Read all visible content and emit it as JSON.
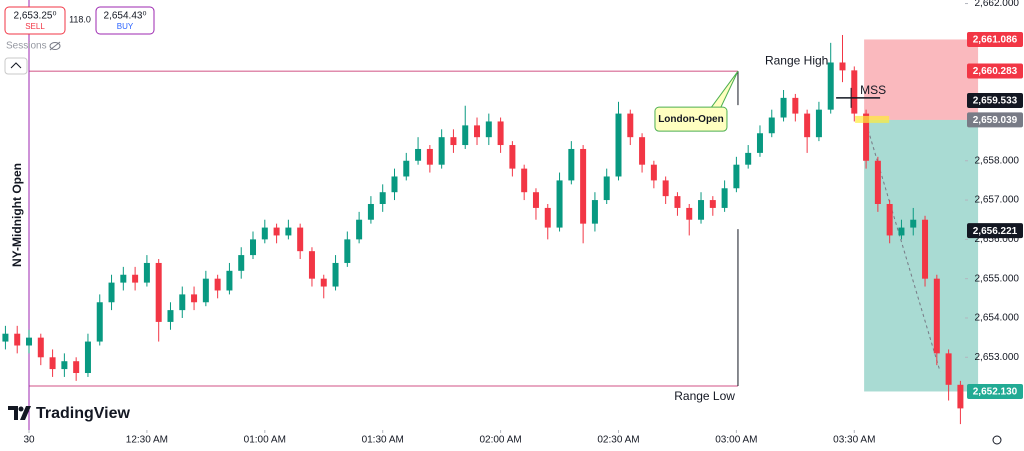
{
  "chart_data": {
    "type": "candlestick",
    "x": [
      -6,
      -3,
      0,
      3,
      6,
      9,
      12,
      15,
      18,
      21,
      24,
      27,
      30,
      33,
      36,
      39,
      42,
      45,
      48,
      51,
      54,
      57,
      60,
      63,
      66,
      69,
      72,
      75,
      78,
      81,
      84,
      87,
      90,
      93,
      96,
      99,
      102,
      105,
      108,
      111,
      114,
      117,
      120,
      123,
      126,
      129,
      132,
      135,
      138,
      141,
      144,
      147,
      150,
      153,
      156,
      159,
      162,
      165,
      168,
      171,
      174,
      177,
      180,
      183,
      186,
      189,
      192,
      195,
      198,
      201,
      204,
      207,
      210,
      213,
      216,
      219,
      222,
      225,
      228,
      231,
      234,
      237
    ],
    "open": [
      2653.4,
      2653.6,
      2653.3,
      2653.5,
      2653.0,
      2652.7,
      2652.9,
      2652.6,
      2653.4,
      2654.4,
      2654.9,
      2655.1,
      2654.9,
      2655.4,
      2653.9,
      2654.2,
      2654.6,
      2654.4,
      2655.0,
      2654.7,
      2655.2,
      2655.6,
      2656.0,
      2656.3,
      2656.1,
      2656.3,
      2655.7,
      2655.0,
      2654.8,
      2655.4,
      2656.0,
      2656.5,
      2656.9,
      2657.2,
      2657.6,
      2658.0,
      2658.3,
      2657.9,
      2658.6,
      2658.4,
      2658.9,
      2658.6,
      2659.0,
      2658.4,
      2657.8,
      2657.2,
      2656.8,
      2656.3,
      2657.5,
      2658.3,
      2656.4,
      2657.0,
      2657.6,
      2659.2,
      2658.6,
      2657.9,
      2657.5,
      2657.1,
      2656.8,
      2656.5,
      2657.0,
      2656.8,
      2657.3,
      2657.9,
      2658.2,
      2658.7,
      2659.1,
      2659.6,
      2659.2,
      2658.6,
      2659.3,
      2660.5,
      2660.3,
      2659.2,
      2658.0,
      2656.9,
      2656.1,
      2656.3,
      2656.5,
      2655.0,
      2653.1,
      2652.3
    ],
    "high": [
      2653.8,
      2653.8,
      2653.7,
      2653.6,
      2653.2,
      2653.1,
      2653.0,
      2653.6,
      2654.6,
      2655.1,
      2655.3,
      2655.3,
      2655.6,
      2655.5,
      2654.4,
      2654.8,
      2654.8,
      2655.2,
      2655.1,
      2655.4,
      2655.8,
      2656.2,
      2656.5,
      2656.4,
      2656.5,
      2656.4,
      2655.8,
      2655.1,
      2655.6,
      2656.2,
      2656.7,
      2657.1,
      2657.4,
      2657.8,
      2658.2,
      2658.6,
      2658.4,
      2658.8,
      2658.8,
      2659.4,
      2659.1,
      2659.2,
      2659.1,
      2658.5,
      2657.9,
      2657.3,
      2656.9,
      2657.7,
      2658.5,
      2658.4,
      2657.2,
      2657.8,
      2659.5,
      2659.3,
      2658.7,
      2658.0,
      2657.6,
      2657.2,
      2656.9,
      2657.2,
      2657.1,
      2657.5,
      2658.1,
      2658.4,
      2658.9,
      2659.3,
      2659.8,
      2659.7,
      2659.3,
      2659.5,
      2661.0,
      2661.2,
      2660.4,
      2659.3,
      2658.1,
      2657.0,
      2656.5,
      2656.8,
      2656.6,
      2655.1,
      2653.2,
      2652.4
    ],
    "low": [
      2653.2,
      2653.1,
      2653.1,
      2652.8,
      2652.5,
      2652.5,
      2652.4,
      2652.5,
      2653.3,
      2654.2,
      2654.7,
      2654.7,
      2654.8,
      2653.4,
      2653.7,
      2654.0,
      2654.2,
      2654.3,
      2654.5,
      2654.6,
      2655.0,
      2655.5,
      2655.9,
      2655.9,
      2656.0,
      2655.5,
      2654.8,
      2654.5,
      2654.7,
      2655.3,
      2655.9,
      2656.4,
      2656.7,
      2657.0,
      2657.5,
      2657.9,
      2657.7,
      2657.8,
      2658.2,
      2658.3,
      2658.4,
      2658.4,
      2658.2,
      2657.6,
      2657.0,
      2656.5,
      2656.0,
      2656.2,
      2657.4,
      2655.9,
      2656.2,
      2656.9,
      2657.5,
      2658.4,
      2657.7,
      2657.3,
      2656.9,
      2656.6,
      2656.1,
      2656.4,
      2656.6,
      2656.7,
      2657.2,
      2657.8,
      2658.1,
      2658.6,
      2659.0,
      2659.0,
      2658.2,
      2658.5,
      2659.2,
      2660.0,
      2659.0,
      2657.8,
      2656.7,
      2655.9,
      2656.0,
      2656.1,
      2654.8,
      2652.8,
      2651.9,
      2651.3
    ],
    "close": [
      2653.6,
      2653.3,
      2653.5,
      2653.0,
      2652.7,
      2652.9,
      2652.6,
      2653.4,
      2654.4,
      2654.9,
      2655.1,
      2654.9,
      2655.4,
      2653.9,
      2654.2,
      2654.6,
      2654.4,
      2655.0,
      2654.7,
      2655.2,
      2655.6,
      2656.0,
      2656.3,
      2656.1,
      2656.3,
      2655.7,
      2655.0,
      2654.8,
      2655.4,
      2656.0,
      2656.5,
      2656.9,
      2657.2,
      2657.6,
      2658.0,
      2658.3,
      2657.9,
      2658.6,
      2658.4,
      2658.9,
      2658.6,
      2659.0,
      2658.4,
      2657.8,
      2657.2,
      2656.8,
      2656.3,
      2657.5,
      2658.3,
      2656.4,
      2657.0,
      2657.6,
      2659.2,
      2658.6,
      2657.9,
      2657.5,
      2657.1,
      2656.8,
      2656.5,
      2657.0,
      2656.8,
      2657.3,
      2657.9,
      2658.2,
      2658.7,
      2659.1,
      2659.6,
      2659.2,
      2658.6,
      2659.3,
      2660.5,
      2660.3,
      2659.2,
      2658.0,
      2656.9,
      2656.1,
      2656.3,
      2656.5,
      2655.0,
      2653.1,
      2652.3,
      2651.7
    ],
    "up_color": "#089981",
    "down_color": "#f23645",
    "xlim": [
      -7.38,
      238.17
    ],
    "xticks": [
      {
        "value": 0,
        "label": "30"
      },
      {
        "value": 30,
        "label": "12:30 AM"
      },
      {
        "value": 60,
        "label": "01:00 AM"
      },
      {
        "value": 90,
        "label": "01:30 AM"
      },
      {
        "value": 120,
        "label": "02:00 AM"
      },
      {
        "value": 150,
        "label": "02:30 AM"
      },
      {
        "value": 180,
        "label": "03:00 AM"
      },
      {
        "value": 210,
        "label": "03:30 AM"
      }
    ],
    "ylim": [
      2651.15,
      2662.09
    ],
    "yticks": [
      {
        "value": 2653,
        "label": "2,653.000"
      },
      {
        "value": 2654,
        "label": "2,654.000"
      },
      {
        "value": 2655,
        "label": "2,655.000"
      },
      {
        "value": 2656,
        "label": "2,656.000"
      },
      {
        "value": 2657,
        "label": "2,657.000"
      },
      {
        "value": 2658,
        "label": "2,658.000"
      },
      {
        "value": 2662,
        "label": "2,662.000"
      }
    ],
    "price_labels": [
      {
        "value": 2661.086,
        "label": "2,661.086",
        "color": "#f23645"
      },
      {
        "value": 2660.283,
        "label": "2,660.283",
        "color": "#f23645"
      },
      {
        "value": 2659.533,
        "label": "2,659.533",
        "color": "#131722"
      },
      {
        "value": 2659.039,
        "label": "2,659.039",
        "color": "#787b86"
      },
      {
        "value": 2656.221,
        "label": "2,656.221",
        "color": "#131722"
      },
      {
        "value": 2652.13,
        "label": "2,652.130",
        "color": "#22ab94"
      }
    ],
    "range_high": {
      "value": 2660.28,
      "label": "Range High"
    },
    "range_low": {
      "value": 2652.27,
      "label": "Range Low"
    },
    "ny_open": {
      "x": 0,
      "label": "NY-Midnight Open"
    },
    "london_open": {
      "x": 180.4,
      "label": "London-Open"
    },
    "mss": {
      "value": 2659.6,
      "label": "MSS"
    },
    "position": {
      "start_x": 212.5,
      "end_x": 241.5
    }
  },
  "ui": {
    "sell_price": "2,653.25⁰",
    "sell": "SELL",
    "spread": "118.0",
    "buy_price": "2,654.43⁰",
    "buy": "BUY",
    "sessions": "Sessions",
    "brand": "TradingView"
  }
}
